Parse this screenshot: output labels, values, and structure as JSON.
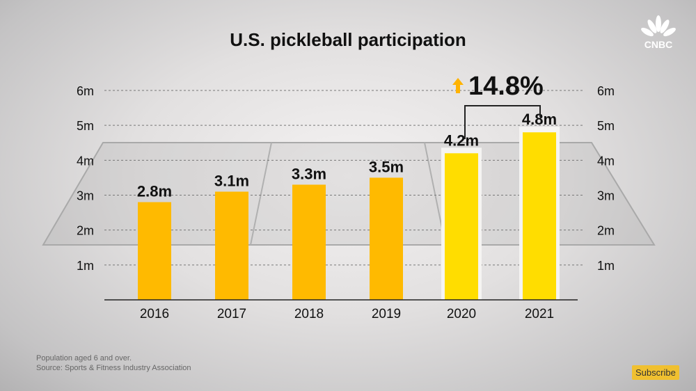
{
  "chart_data": {
    "type": "bar",
    "title": "U.S. pickleball participation",
    "categories": [
      "2016",
      "2017",
      "2018",
      "2019",
      "2020",
      "2021"
    ],
    "values": [
      2.8,
      3.1,
      3.3,
      3.5,
      4.2,
      4.8
    ],
    "data_labels": [
      "2.8m",
      "3.1m",
      "3.3m",
      "3.5m",
      "4.2m",
      "4.8m"
    ],
    "ylim": [
      0,
      6
    ],
    "yticks": [
      "1m",
      "2m",
      "3m",
      "4m",
      "5m",
      "6m"
    ],
    "grid": true,
    "colors": {
      "default": "#ffba00",
      "highlight": "#ffdd00",
      "arrow": "#ffb300"
    },
    "highlighted": [
      "2020",
      "2021"
    ],
    "annotation": "14.8%"
  },
  "notes": [
    "Population aged 6 and over.",
    "Source: Sports & Fitness Industry Association"
  ],
  "subscribe_label": "Subscribe",
  "logo": "CNBC"
}
